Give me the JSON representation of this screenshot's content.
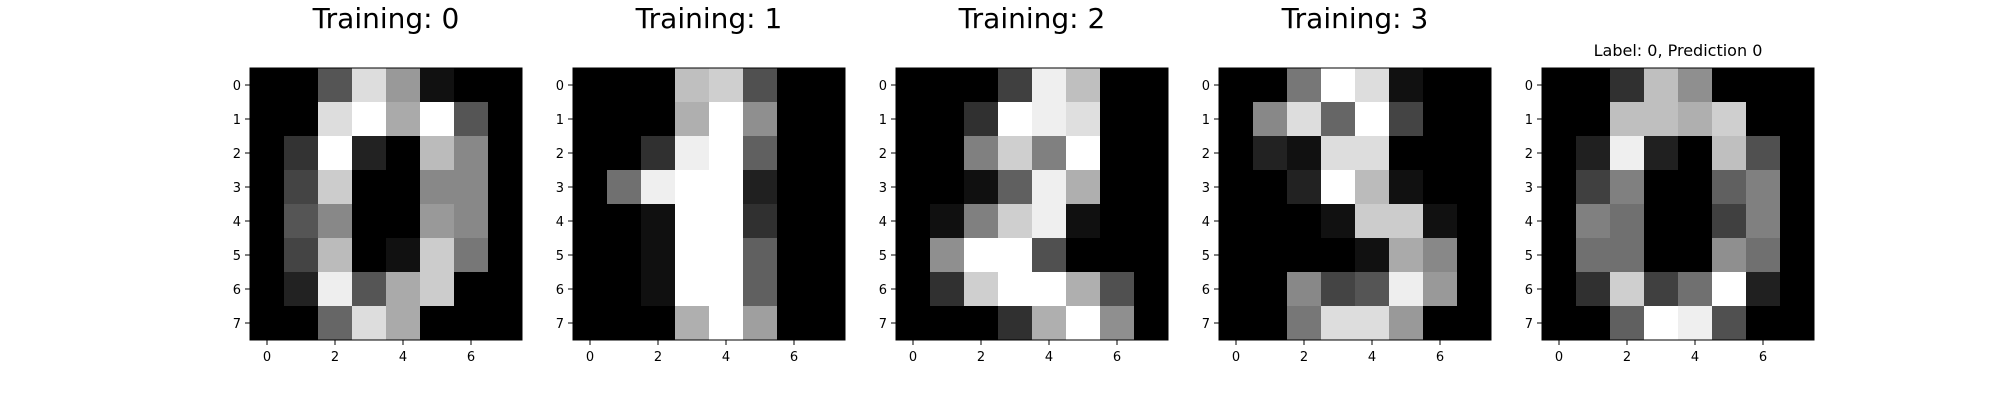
{
  "chart_data": [
    {
      "type": "heatmap",
      "title": "Training: 0",
      "colormap": "gray_r",
      "x_ticks": [
        0,
        2,
        4,
        6
      ],
      "y_ticks": [
        0,
        1,
        2,
        3,
        4,
        5,
        6,
        7
      ],
      "values": [
        [
          0,
          0,
          5,
          13,
          9,
          1,
          0,
          0
        ],
        [
          0,
          0,
          13,
          15,
          10,
          15,
          5,
          0
        ],
        [
          0,
          3,
          15,
          2,
          0,
          11,
          8,
          0
        ],
        [
          0,
          4,
          12,
          0,
          0,
          8,
          8,
          0
        ],
        [
          0,
          5,
          8,
          0,
          0,
          9,
          8,
          0
        ],
        [
          0,
          4,
          11,
          0,
          1,
          12,
          7,
          0
        ],
        [
          0,
          2,
          14,
          5,
          10,
          12,
          0,
          0
        ],
        [
          0,
          0,
          6,
          13,
          10,
          0,
          0,
          0
        ]
      ]
    },
    {
      "type": "heatmap",
      "title": "Training: 1",
      "colormap": "gray_r",
      "x_ticks": [
        0,
        2,
        4,
        6
      ],
      "y_ticks": [
        0,
        1,
        2,
        3,
        4,
        5,
        6,
        7
      ],
      "values": [
        [
          0,
          0,
          0,
          12,
          13,
          5,
          0,
          0
        ],
        [
          0,
          0,
          0,
          11,
          16,
          9,
          0,
          0
        ],
        [
          0,
          0,
          3,
          15,
          16,
          6,
          0,
          0
        ],
        [
          0,
          7,
          15,
          16,
          16,
          2,
          0,
          0
        ],
        [
          0,
          0,
          1,
          16,
          16,
          3,
          0,
          0
        ],
        [
          0,
          0,
          1,
          16,
          16,
          6,
          0,
          0
        ],
        [
          0,
          0,
          1,
          16,
          16,
          6,
          0,
          0
        ],
        [
          0,
          0,
          0,
          11,
          16,
          10,
          0,
          0
        ]
      ]
    },
    {
      "type": "heatmap",
      "title": "Training: 2",
      "colormap": "gray_r",
      "x_ticks": [
        0,
        2,
        4,
        6
      ],
      "y_ticks": [
        0,
        1,
        2,
        3,
        4,
        5,
        6,
        7
      ],
      "values": [
        [
          0,
          0,
          0,
          4,
          15,
          12,
          0,
          0
        ],
        [
          0,
          0,
          3,
          16,
          15,
          14,
          0,
          0
        ],
        [
          0,
          0,
          8,
          13,
          8,
          16,
          0,
          0
        ],
        [
          0,
          0,
          1,
          6,
          15,
          11,
          0,
          0
        ],
        [
          0,
          1,
          8,
          13,
          15,
          1,
          0,
          0
        ],
        [
          0,
          9,
          16,
          16,
          5,
          0,
          0,
          0
        ],
        [
          0,
          3,
          13,
          16,
          16,
          11,
          5,
          0
        ],
        [
          0,
          0,
          0,
          3,
          11,
          16,
          9,
          0
        ]
      ]
    },
    {
      "type": "heatmap",
      "title": "Training: 3",
      "colormap": "gray_r",
      "x_ticks": [
        0,
        2,
        4,
        6
      ],
      "y_ticks": [
        0,
        1,
        2,
        3,
        4,
        5,
        6,
        7
      ],
      "values": [
        [
          0,
          0,
          7,
          15,
          13,
          1,
          0,
          0
        ],
        [
          0,
          8,
          13,
          6,
          15,
          4,
          0,
          0
        ],
        [
          0,
          2,
          1,
          13,
          13,
          0,
          0,
          0
        ],
        [
          0,
          0,
          2,
          15,
          11,
          1,
          0,
          0
        ],
        [
          0,
          0,
          0,
          1,
          12,
          12,
          1,
          0
        ],
        [
          0,
          0,
          0,
          0,
          1,
          10,
          8,
          0
        ],
        [
          0,
          0,
          8,
          4,
          5,
          14,
          9,
          0
        ],
        [
          0,
          0,
          7,
          13,
          13,
          9,
          0,
          0
        ]
      ]
    },
    {
      "type": "heatmap",
      "title": "Label: 0, Prediction 0",
      "colormap": "gray_r",
      "x_ticks": [
        0,
        2,
        4,
        6
      ],
      "y_ticks": [
        0,
        1,
        2,
        3,
        4,
        5,
        6,
        7
      ],
      "values": [
        [
          0,
          0,
          3,
          12,
          9,
          0,
          0,
          0
        ],
        [
          0,
          0,
          12,
          12,
          11,
          13,
          0,
          0
        ],
        [
          0,
          2,
          15,
          2,
          0,
          12,
          5,
          0
        ],
        [
          0,
          4,
          8,
          0,
          0,
          6,
          8,
          0
        ],
        [
          0,
          8,
          7,
          0,
          0,
          4,
          8,
          0
        ],
        [
          0,
          7,
          7,
          0,
          0,
          9,
          7,
          0
        ],
        [
          0,
          3,
          13,
          4,
          7,
          16,
          2,
          0
        ],
        [
          0,
          0,
          6,
          16,
          15,
          5,
          0,
          0
        ]
      ]
    }
  ]
}
